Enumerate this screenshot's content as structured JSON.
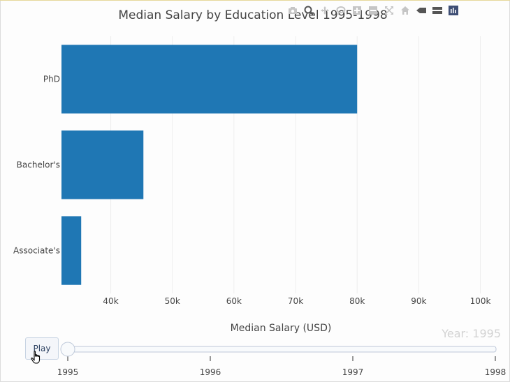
{
  "toolbar": {
    "icons": [
      "camera-icon",
      "zoom-icon",
      "pan-icon",
      "lasso-icon",
      "zoom-in-icon",
      "zoom-out-icon",
      "autoscale-icon",
      "reset-axes-icon",
      "spike-lines-icon",
      "compare-hover-icon",
      "plotly-logo-icon"
    ]
  },
  "slider": {
    "play_label": "Play",
    "current_value_label": "Year: 1995",
    "ticks": [
      "1995",
      "1996",
      "1997",
      "1998"
    ],
    "current_index": 0
  },
  "colors": {
    "bar": "#1f77b4",
    "title": "#444444",
    "axis_text": "#444444",
    "grid": "#eeeeee",
    "slider_label": "#d3d3d3",
    "slider_track": "#d7dfe9"
  },
  "chart_data": {
    "type": "bar",
    "orientation": "horizontal",
    "title": "Median Salary by Education Level 1995-1998",
    "xlabel": "Median Salary (USD)",
    "ylabel": "",
    "categories": [
      "PhD",
      "Bachelor's",
      "Associate's"
    ],
    "values": [
      80000,
      45300,
      35200
    ],
    "xlim": [
      32000,
      103000
    ],
    "xticks": [
      40000,
      50000,
      60000,
      70000,
      80000,
      90000,
      100000
    ],
    "xtick_labels": [
      "40k",
      "50k",
      "60k",
      "70k",
      "80k",
      "90k",
      "100k"
    ],
    "grid": true,
    "legend": false
  }
}
